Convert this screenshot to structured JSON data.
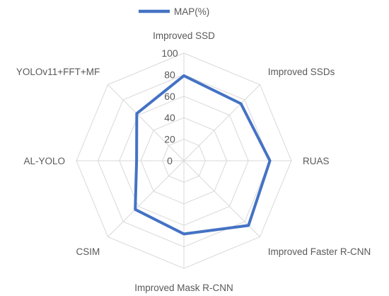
{
  "chart_data": {
    "type": "radar",
    "categories": [
      "Improved SSD",
      "Improved SSDs",
      "RUAS",
      "Improved Faster R-CNN",
      "Improved Mask R-CNN",
      "CSIM",
      "AL-YOLO",
      "YOLOv11+FFT+MF"
    ],
    "series": [
      {
        "name": "MAP(%)",
        "values": [
          79,
          75,
          80,
          85,
          68,
          64,
          44,
          62
        ]
      }
    ],
    "rlim": [
      0,
      100
    ],
    "ticks": [
      "0",
      "20",
      "40",
      "60",
      "80",
      "100"
    ],
    "grid": true,
    "legend": "top",
    "colors": {
      "series": "#4472C4",
      "grid": "#D9D9D9",
      "text": "#595959"
    }
  }
}
